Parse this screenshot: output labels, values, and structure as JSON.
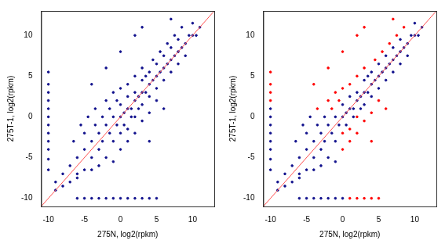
{
  "chart_data": [
    {
      "type": "scatter",
      "x_label": "275N, log2(rpkm)",
      "y_label": "275T-1, log2(rpkm)",
      "xlim": [
        -11,
        13
      ],
      "ylim": [
        -11,
        13
      ],
      "xticks": [
        -10,
        -5,
        0,
        5,
        10
      ],
      "yticks": [
        -10,
        -5,
        0,
        5,
        10
      ],
      "grid": false,
      "series": [
        {
          "color": "#10108c",
          "marker": "circle",
          "values": [
            [
              -10,
              -6.5
            ],
            [
              -10,
              -5.2
            ],
            [
              -10,
              -4
            ],
            [
              -10,
              -3
            ],
            [
              -10,
              -2
            ],
            [
              -10,
              -1
            ],
            [
              -10,
              0
            ],
            [
              -10,
              1
            ],
            [
              -10,
              2
            ],
            [
              -10,
              3
            ],
            [
              -10,
              4
            ],
            [
              -10,
              5.5
            ],
            [
              -6,
              -10
            ],
            [
              -5,
              -10
            ],
            [
              -4,
              -10
            ],
            [
              -3,
              -10
            ],
            [
              -2,
              -10
            ],
            [
              -1,
              -10
            ],
            [
              0,
              -10
            ],
            [
              1,
              -10
            ],
            [
              2,
              -10
            ],
            [
              3,
              -10
            ],
            [
              4,
              -10
            ],
            [
              5,
              -10
            ],
            [
              -9,
              -9
            ],
            [
              -8,
              -8.5
            ],
            [
              -7,
              -8
            ],
            [
              -6,
              -7.5
            ],
            [
              -9,
              -8
            ],
            [
              -8,
              -7
            ],
            [
              -7,
              -6
            ],
            [
              -6.5,
              -3
            ],
            [
              -6,
              -5
            ],
            [
              -6,
              -7
            ],
            [
              -5.5,
              -1
            ],
            [
              -5,
              -4
            ],
            [
              -5,
              -6.5
            ],
            [
              -5,
              -2
            ],
            [
              -4.5,
              0
            ],
            [
              -4,
              -3
            ],
            [
              -4,
              -5
            ],
            [
              -4,
              -6.5
            ],
            [
              -3.5,
              -1
            ],
            [
              -3.5,
              1
            ],
            [
              -3,
              -4
            ],
            [
              -3,
              -2
            ],
            [
              -3,
              -6
            ],
            [
              -2.5,
              0
            ],
            [
              -2.5,
              -3
            ],
            [
              -2,
              2
            ],
            [
              -2,
              -1
            ],
            [
              -2,
              -5
            ],
            [
              -1.5,
              -2
            ],
            [
              -1.5,
              1
            ],
            [
              -1,
              0
            ],
            [
              -1,
              -3
            ],
            [
              -1,
              3
            ],
            [
              -1,
              -5.5
            ],
            [
              -0.5,
              -1
            ],
            [
              -0.5,
              2
            ],
            [
              0,
              0
            ],
            [
              0,
              -2
            ],
            [
              0,
              1.5
            ],
            [
              0,
              -4
            ],
            [
              0,
              3.5
            ],
            [
              0.5,
              0.5
            ],
            [
              0.5,
              -1
            ],
            [
              1,
              1
            ],
            [
              1,
              2.5
            ],
            [
              1,
              -1.5
            ],
            [
              1,
              -3
            ],
            [
              1,
              4
            ],
            [
              1.5,
              1
            ],
            [
              1.5,
              0
            ],
            [
              2,
              2
            ],
            [
              2,
              3
            ],
            [
              2,
              0
            ],
            [
              2,
              -2
            ],
            [
              2,
              5
            ],
            [
              2.5,
              2.5
            ],
            [
              2.5,
              1
            ],
            [
              3,
              3
            ],
            [
              3,
              4.5
            ],
            [
              3,
              1.5
            ],
            [
              3,
              -0.5
            ],
            [
              3,
              6
            ],
            [
              3.5,
              3
            ],
            [
              3.5,
              5
            ],
            [
              4,
              4
            ],
            [
              4,
              2.5
            ],
            [
              4,
              5.5
            ],
            [
              4,
              0.5
            ],
            [
              4.5,
              4.5
            ],
            [
              4.5,
              7
            ],
            [
              5,
              5
            ],
            [
              5,
              3.5
            ],
            [
              5,
              6.5
            ],
            [
              5,
              2
            ],
            [
              5.5,
              5.5
            ],
            [
              5.5,
              8
            ],
            [
              6,
              6
            ],
            [
              6,
              4.5
            ],
            [
              6,
              7.5
            ],
            [
              6.5,
              6.5
            ],
            [
              6.5,
              9
            ],
            [
              7,
              7
            ],
            [
              7,
              5.5
            ],
            [
              7,
              8.5
            ],
            [
              7.5,
              7.5
            ],
            [
              7.5,
              10
            ],
            [
              8,
              8
            ],
            [
              8,
              6.5
            ],
            [
              8,
              9.5
            ],
            [
              8.5,
              8.5
            ],
            [
              8.5,
              11
            ],
            [
              9,
              9
            ],
            [
              9,
              7.5
            ],
            [
              9.5,
              10
            ],
            [
              10,
              10
            ],
            [
              10,
              11.5
            ],
            [
              10.5,
              10
            ],
            [
              11,
              11
            ],
            [
              -2,
              6
            ],
            [
              0,
              8
            ],
            [
              2,
              10
            ],
            [
              -4,
              4
            ],
            [
              6,
              1
            ],
            [
              4,
              -3
            ],
            [
              7,
              12
            ],
            [
              3,
              11
            ]
          ]
        },
        {
          "type": "line",
          "color": "#ff5050",
          "values": [
            [
              -11,
              -11
            ],
            [
              13,
              13
            ]
          ]
        }
      ]
    },
    {
      "type": "scatter",
      "x_label": "275N, log2(rpkm)",
      "y_label": "275T-1, log2(rpkm)",
      "xlim": [
        -11,
        13
      ],
      "ylim": [
        -11,
        13
      ],
      "xticks": [
        -10,
        -5,
        0,
        5,
        10
      ],
      "yticks": [
        -10,
        -5,
        0,
        5,
        10
      ],
      "grid": false,
      "series": [
        {
          "color": "#ff0000",
          "marker": "circle",
          "values": [
            [
              -10,
              2
            ],
            [
              -10,
              3
            ],
            [
              -10,
              4
            ],
            [
              -10,
              5.5
            ],
            [
              1,
              -10
            ],
            [
              2,
              -10
            ],
            [
              3,
              -10
            ],
            [
              4,
              -10
            ],
            [
              5,
              -10
            ],
            [
              -3.5,
              1
            ],
            [
              -2,
              2
            ],
            [
              -1.5,
              1
            ],
            [
              -1,
              3
            ],
            [
              -0.5,
              2
            ],
            [
              0,
              -2
            ],
            [
              0,
              -4
            ],
            [
              0,
              3.5
            ],
            [
              1,
              -1.5
            ],
            [
              1,
              -3
            ],
            [
              1,
              4
            ],
            [
              2,
              0
            ],
            [
              2,
              -2
            ],
            [
              2,
              5
            ],
            [
              3,
              -0.5
            ],
            [
              3,
              6
            ],
            [
              4,
              0.5
            ],
            [
              4.5,
              7
            ],
            [
              5,
              2
            ],
            [
              5.5,
              8
            ],
            [
              6.5,
              9
            ],
            [
              7.5,
              10
            ],
            [
              8.5,
              11
            ],
            [
              -2,
              6
            ],
            [
              0,
              8
            ],
            [
              2,
              10
            ],
            [
              -4,
              4
            ],
            [
              6,
              1
            ],
            [
              4,
              -3
            ],
            [
              7,
              12
            ],
            [
              3,
              11
            ]
          ]
        },
        {
          "color": "#10108c",
          "marker": "circle",
          "values": [
            [
              -10,
              -6.5
            ],
            [
              -10,
              -5.2
            ],
            [
              -10,
              -4
            ],
            [
              -10,
              -3
            ],
            [
              -10,
              -2
            ],
            [
              -10,
              -1
            ],
            [
              -10,
              0
            ],
            [
              -10,
              1
            ],
            [
              -6,
              -10
            ],
            [
              -5,
              -10
            ],
            [
              -4,
              -10
            ],
            [
              -3,
              -10
            ],
            [
              -2,
              -10
            ],
            [
              -1,
              -10
            ],
            [
              0,
              -10
            ],
            [
              -9,
              -9
            ],
            [
              -8,
              -8.5
            ],
            [
              -7,
              -8
            ],
            [
              -6,
              -7.5
            ],
            [
              -9,
              -8
            ],
            [
              -8,
              -7
            ],
            [
              -7,
              -6
            ],
            [
              -6.5,
              -3
            ],
            [
              -6,
              -5
            ],
            [
              -6,
              -7
            ],
            [
              -5.5,
              -1
            ],
            [
              -5,
              -4
            ],
            [
              -5,
              -6.5
            ],
            [
              -5,
              -2
            ],
            [
              -4.5,
              0
            ],
            [
              -4,
              -3
            ],
            [
              -4,
              -5
            ],
            [
              -4,
              -6.5
            ],
            [
              -3.5,
              -1
            ],
            [
              -3,
              -4
            ],
            [
              -3,
              -2
            ],
            [
              -3,
              -6
            ],
            [
              -2.5,
              0
            ],
            [
              -2.5,
              -3
            ],
            [
              -2,
              -1
            ],
            [
              -2,
              -5
            ],
            [
              -1.5,
              -2
            ],
            [
              -1,
              0
            ],
            [
              -1,
              -3
            ],
            [
              -1,
              -5.5
            ],
            [
              -0.5,
              -1
            ],
            [
              0,
              0
            ],
            [
              0,
              1.5
            ],
            [
              0.5,
              0.5
            ],
            [
              0.5,
              -1
            ],
            [
              1,
              1
            ],
            [
              1,
              2.5
            ],
            [
              1.5,
              1
            ],
            [
              1.5,
              0
            ],
            [
              2,
              2
            ],
            [
              2,
              3
            ],
            [
              2.5,
              2.5
            ],
            [
              2.5,
              1
            ],
            [
              3,
              3
            ],
            [
              3,
              4.5
            ],
            [
              3,
              1.5
            ],
            [
              3.5,
              3
            ],
            [
              3.5,
              5
            ],
            [
              4,
              4
            ],
            [
              4,
              2.5
            ],
            [
              4,
              5.5
            ],
            [
              4.5,
              4.5
            ],
            [
              5,
              5
            ],
            [
              5,
              3.5
            ],
            [
              5,
              6.5
            ],
            [
              5.5,
              5.5
            ],
            [
              6,
              6
            ],
            [
              6,
              4.5
            ],
            [
              6,
              7.5
            ],
            [
              6.5,
              6.5
            ],
            [
              7,
              7
            ],
            [
              7,
              5.5
            ],
            [
              7,
              8.5
            ],
            [
              7.5,
              7.5
            ],
            [
              8,
              8
            ],
            [
              8,
              6.5
            ],
            [
              8,
              9.5
            ],
            [
              8.5,
              8.5
            ],
            [
              9,
              9
            ],
            [
              9,
              7.5
            ],
            [
              9.5,
              10
            ],
            [
              10,
              10
            ],
            [
              10,
              11.5
            ],
            [
              10.5,
              10
            ],
            [
              11,
              11
            ]
          ]
        },
        {
          "type": "line",
          "color": "#ff5050",
          "values": [
            [
              -11,
              -11
            ],
            [
              13,
              13
            ]
          ]
        }
      ]
    }
  ]
}
